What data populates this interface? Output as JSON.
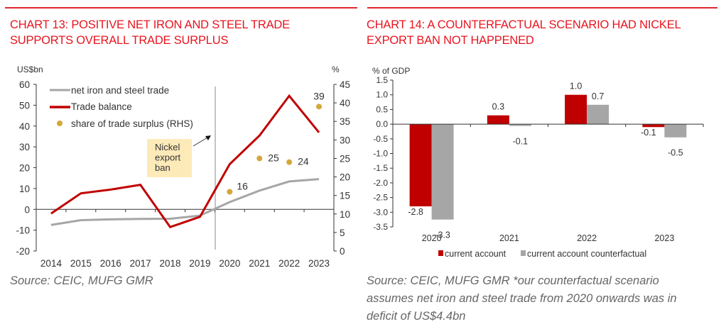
{
  "chart_data": [
    {
      "type": "line",
      "title": "CHART 13: POSITIVE NET IRON AND STEEL TRADE SUPPORTS OVERALL TRADE SURPLUS",
      "source": "Source: CEIC, MUFG GMR",
      "ylabel": "US$bn",
      "y2label": "%",
      "ylim": [
        -20,
        60
      ],
      "yticks": [
        "60",
        "50",
        "40",
        "30",
        "20",
        "10",
        "0",
        "-10",
        "-20"
      ],
      "y2lim": [
        0,
        45
      ],
      "y2ticks": [
        "45",
        "40",
        "35",
        "30",
        "25",
        "20",
        "15",
        "10",
        "5",
        "0"
      ],
      "categories": [
        "2014",
        "2015",
        "2016",
        "2017",
        "2018",
        "2019",
        "2020",
        "2021",
        "2022",
        "2023"
      ],
      "series": [
        {
          "name": "net iron and steel trade",
          "color": "#a6a6a6",
          "axis": "left",
          "values": [
            -7.5,
            -5.2,
            -4.8,
            -4.6,
            -4.5,
            -3.0,
            3.5,
            9.0,
            13.4,
            14.5
          ]
        },
        {
          "name": "Trade balance",
          "color": "#c00000",
          "axis": "left",
          "values": [
            -2.0,
            7.7,
            9.5,
            11.8,
            -8.5,
            -3.6,
            21.7,
            35.4,
            54.5,
            36.9
          ]
        },
        {
          "name": "share of trade surplus (RHS)",
          "color": "#d4a73a",
          "axis": "right",
          "type": "scatter",
          "x": [
            "2020",
            "2021",
            "2022",
            "2023"
          ],
          "values": [
            16,
            25,
            24,
            39
          ],
          "labels": [
            "16",
            "25",
            "24",
            "39"
          ]
        }
      ],
      "annotation": {
        "lines": [
          "Nickel",
          "export",
          "ban"
        ],
        "at": "between 2019 and 2020"
      },
      "legend": "top-left"
    },
    {
      "type": "bar",
      "title": "CHART 14: A COUNTERFACTUAL SCENARIO HAD NICKEL EXPORT BAN NOT HAPPENED",
      "source_lines": [
        "Source: CEIC, MUFG GMR *our counterfactual scenario",
        "assumes net iron and steel trade from 2020 onwards was in",
        "deficit of US$4.4bn"
      ],
      "ylabel": "% of GDP",
      "ylim": [
        -3.5,
        1.5
      ],
      "yticks": [
        "1.5",
        "1.0",
        "0.5",
        "0.0",
        "-0.5",
        "-1.0",
        "-1.5",
        "-2.0",
        "-2.5",
        "-3.0",
        "-3.5"
      ],
      "categories": [
        "2020",
        "2021",
        "2022",
        "2023"
      ],
      "series": [
        {
          "name": "current account",
          "color": "#c00000",
          "values": [
            -2.8,
            0.3,
            1.0,
            -0.1
          ],
          "labels": [
            "-2.8",
            "0.3",
            "1.0",
            "-0.1"
          ]
        },
        {
          "name": "current account counterfactual",
          "color": "#a6a6a6",
          "values": [
            -3.25,
            -0.06,
            0.66,
            -0.45
          ],
          "labels": [
            "-3.3",
            "-0.1",
            "0.7",
            "-0.5"
          ]
        }
      ],
      "legend": "bottom"
    }
  ]
}
